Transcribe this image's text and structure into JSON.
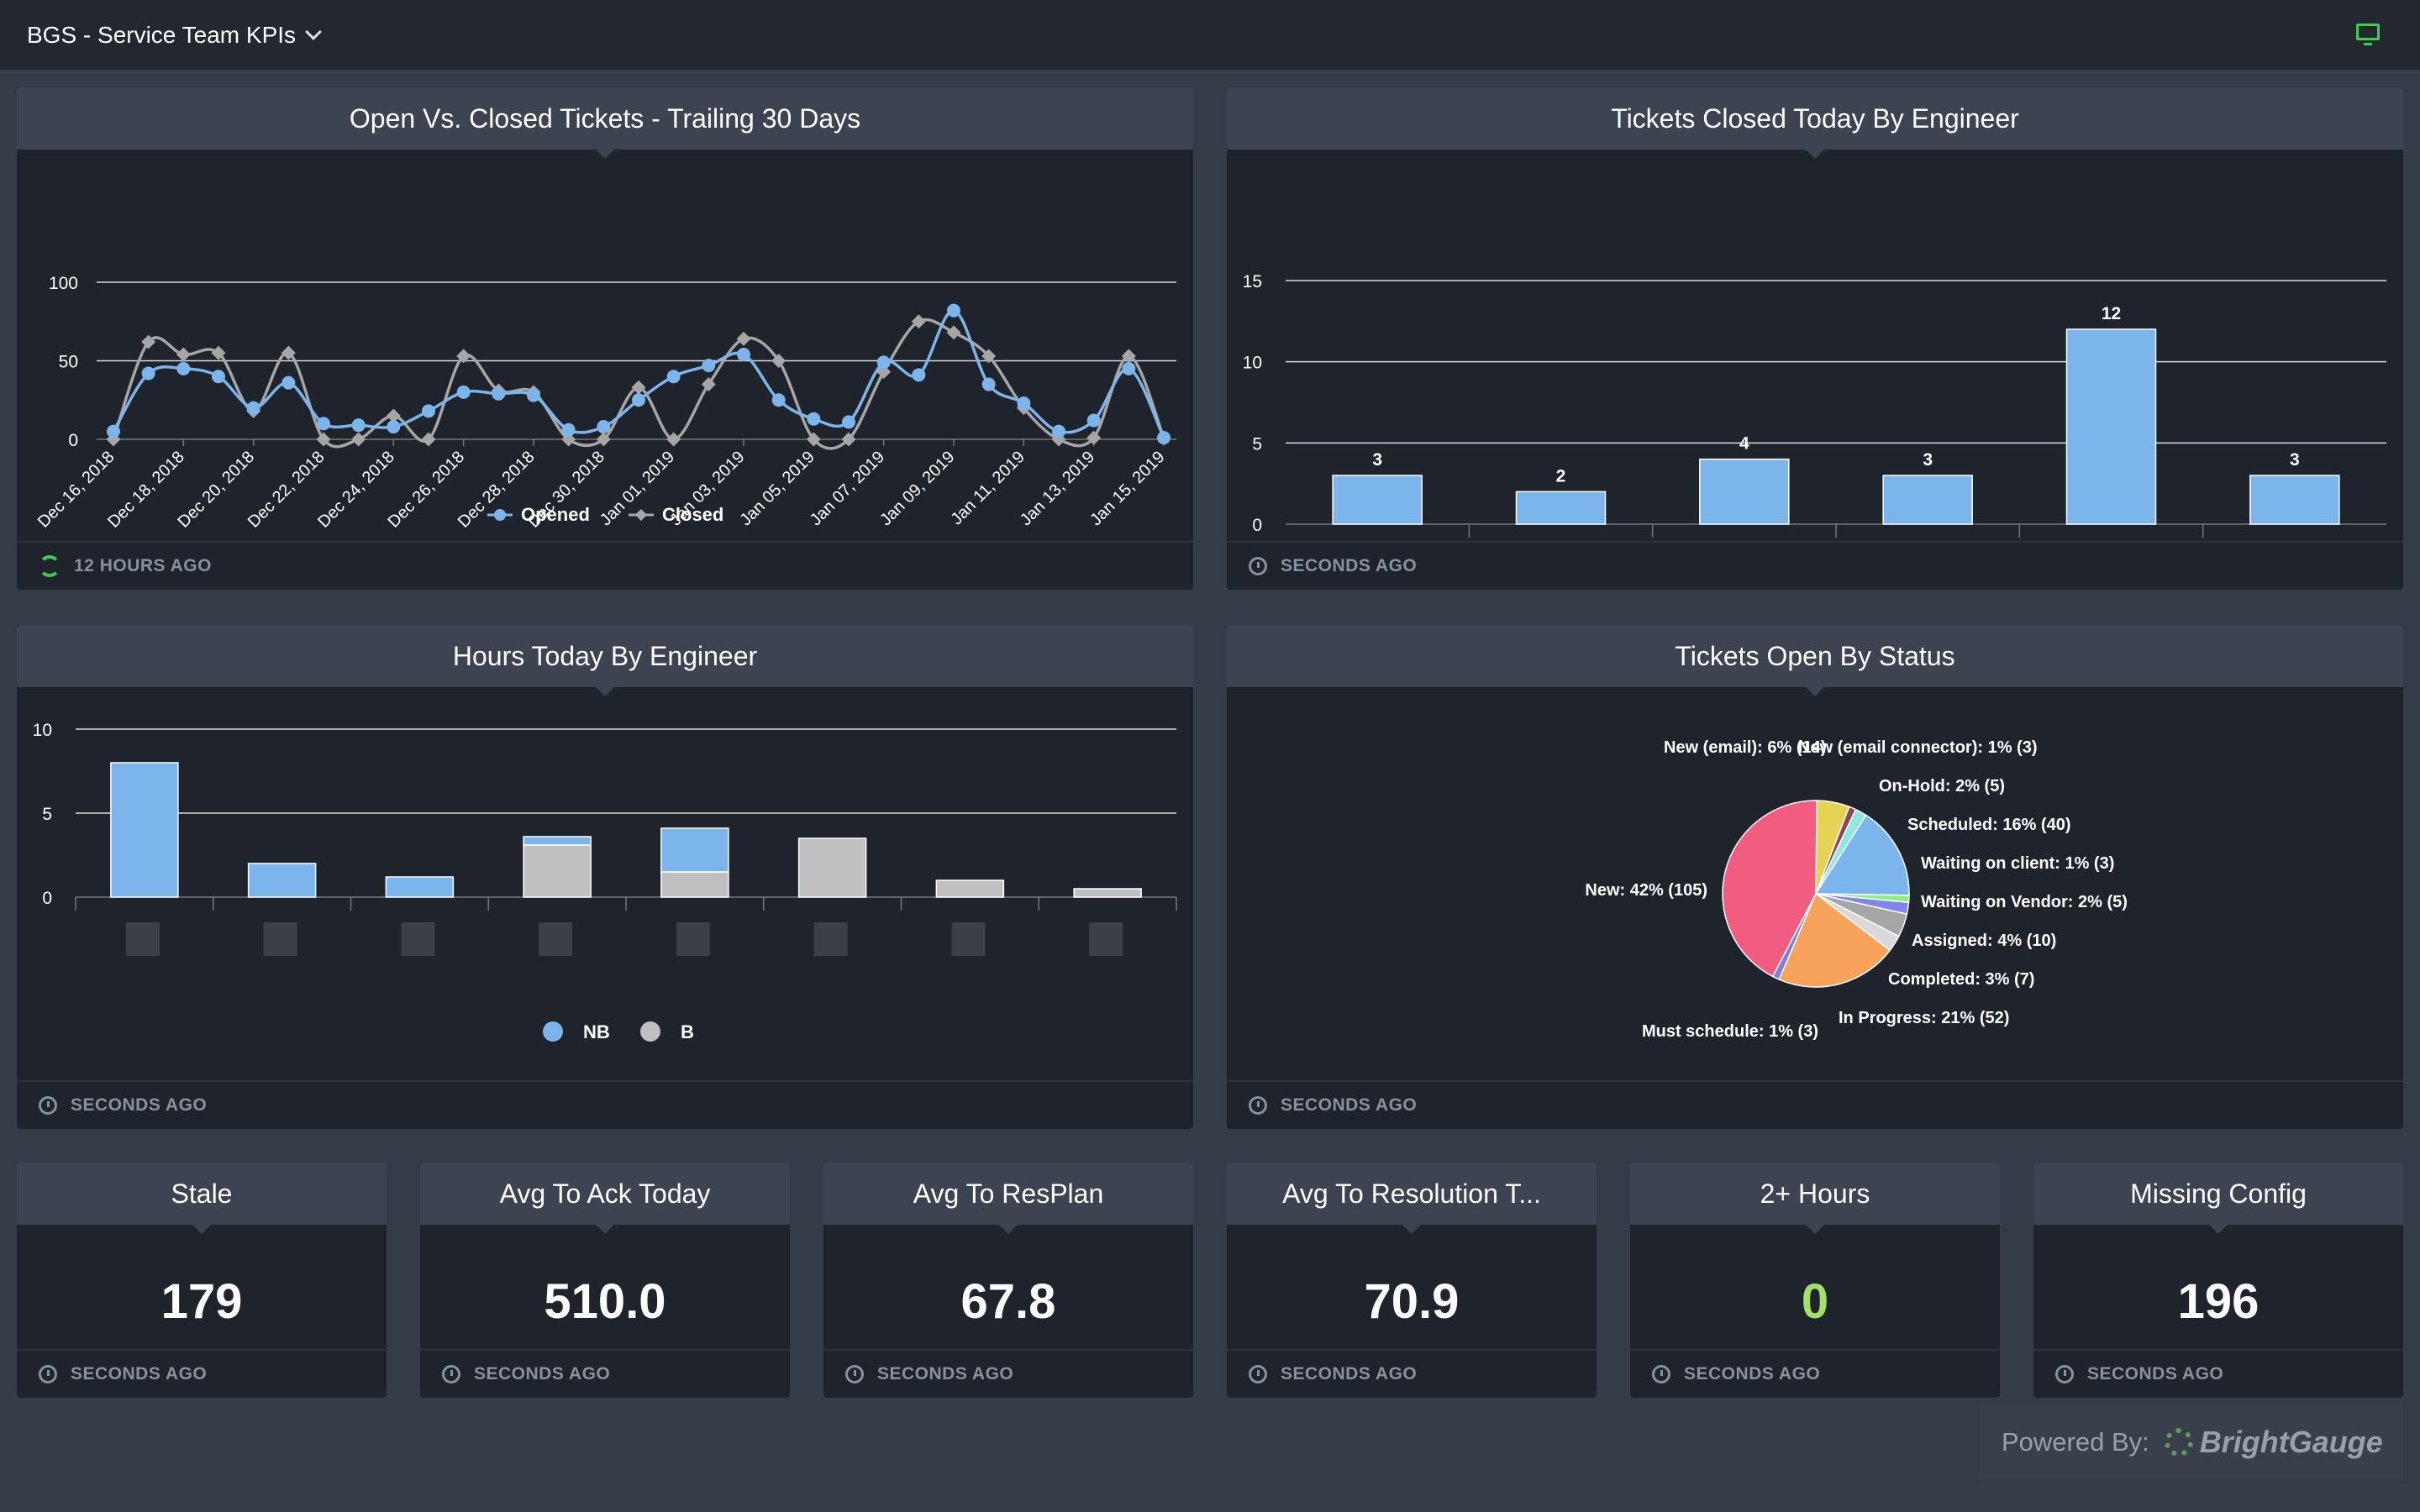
{
  "header": {
    "title": "BGS - Service Team KPIs"
  },
  "panels": {
    "open_closed": {
      "title": "Open Vs. Closed Tickets - Trailing 30 Days",
      "footer": "12 HOURS AGO"
    },
    "closed_by_engineer": {
      "title": "Tickets Closed Today By Engineer",
      "footer": "SECONDS AGO"
    },
    "hours_by_engineer": {
      "title": "Hours Today By Engineer",
      "footer": "SECONDS AGO"
    },
    "open_by_status": {
      "title": "Tickets Open By Status",
      "footer": "SECONDS AGO"
    }
  },
  "kpis": [
    {
      "title": "Stale",
      "value": "179",
      "footer": "SECONDS AGO",
      "color": "#ffffff"
    },
    {
      "title": "Avg To Ack Today",
      "value": "510.0",
      "footer": "SECONDS AGO",
      "color": "#ffffff"
    },
    {
      "title": "Avg To ResPlan",
      "value": "67.8",
      "footer": "SECONDS AGO",
      "color": "#ffffff"
    },
    {
      "title": "Avg To Resolution T...",
      "value": "70.9",
      "footer": "SECONDS AGO",
      "color": "#ffffff"
    },
    {
      "title": "2+ Hours",
      "value": "0",
      "footer": "SECONDS AGO",
      "color": "#a3e06b"
    },
    {
      "title": "Missing Config",
      "value": "196",
      "footer": "SECONDS AGO",
      "color": "#ffffff"
    }
  ],
  "powered": {
    "label": "Powered By:",
    "brand": "BrightGauge"
  },
  "chart_data": [
    {
      "type": "line",
      "title": "Open Vs. Closed Tickets - Trailing 30 Days",
      "x": [
        "Dec 16, 2018",
        "Dec 17, 2018",
        "Dec 18, 2018",
        "Dec 19, 2018",
        "Dec 20, 2018",
        "Dec 21, 2018",
        "Dec 22, 2018",
        "Dec 23, 2018",
        "Dec 24, 2018",
        "Dec 25, 2018",
        "Dec 26, 2018",
        "Dec 27, 2018",
        "Dec 28, 2018",
        "Dec 29, 2018",
        "Dec 30, 2018",
        "Dec 31, 2018",
        "Jan 01, 2019",
        "Jan 02, 2019",
        "Jan 03, 2019",
        "Jan 04, 2019",
        "Jan 05, 2019",
        "Jan 06, 2019",
        "Jan 07, 2019",
        "Jan 08, 2019",
        "Jan 09, 2019",
        "Jan 10, 2019",
        "Jan 11, 2019",
        "Jan 12, 2019",
        "Jan 13, 2019",
        "Jan 14, 2019",
        "Jan 15, 2019"
      ],
      "xticks": [
        "Dec 16, 2018",
        "Dec 18, 2018",
        "Dec 20, 2018",
        "Dec 22, 2018",
        "Dec 24, 2018",
        "Dec 26, 2018",
        "Dec 28, 2018",
        "Dec 30, 2018",
        "Jan 01, 2019",
        "Jan 03, 2019",
        "Jan 05, 2019",
        "Jan 07, 2019",
        "Jan 09, 2019",
        "Jan 11, 2019",
        "Jan 13, 2019",
        "Jan 15, 2019"
      ],
      "ylim": [
        0,
        100
      ],
      "yticks": [
        0,
        50,
        100
      ],
      "series": [
        {
          "name": "Opened",
          "color": "#7cb5ec",
          "values": [
            5,
            42,
            45,
            40,
            20,
            36,
            10,
            9,
            8,
            18,
            30,
            29,
            28,
            6,
            8,
            25,
            40,
            47,
            54,
            25,
            13,
            11,
            49,
            41,
            82,
            35,
            23,
            5,
            12,
            45,
            1
          ]
        },
        {
          "name": "Closed",
          "color": "#a6a6a6",
          "values": [
            0,
            62,
            54,
            55,
            18,
            55,
            0,
            0,
            15,
            0,
            53,
            31,
            30,
            0,
            0,
            33,
            0,
            35,
            64,
            50,
            0,
            0,
            43,
            75,
            68,
            53,
            20,
            0,
            1,
            53,
            1
          ]
        }
      ],
      "legend": "bottom"
    },
    {
      "type": "bar",
      "title": "Tickets Closed Today By Engineer",
      "categories": [
        "",
        "",
        "",
        "",
        "",
        ""
      ],
      "values": [
        3,
        2,
        4,
        3,
        12,
        3
      ],
      "ylim": [
        0,
        15
      ],
      "yticks": [
        0,
        5,
        10,
        15
      ],
      "color": "#7cb5ec"
    },
    {
      "type": "bar",
      "title": "Hours Today By Engineer",
      "stacked": true,
      "categories": [
        "",
        "",
        "",
        "",
        "",
        "",
        "",
        ""
      ],
      "ylim": [
        0,
        10
      ],
      "yticks": [
        0,
        5,
        10
      ],
      "series": [
        {
          "name": "NB",
          "color": "#7cb5ec",
          "values": [
            8.0,
            2.0,
            1.2,
            0.5,
            2.6,
            0,
            0,
            0
          ]
        },
        {
          "name": "B",
          "color": "#c0c0c2",
          "values": [
            0,
            0,
            0,
            3.1,
            1.5,
            3.5,
            1.0,
            0.5
          ]
        }
      ],
      "legend": "bottom"
    },
    {
      "type": "pie",
      "title": "Tickets Open By Status",
      "slices": [
        {
          "label": "New (email): 6% (14)",
          "value": 14,
          "color": "#e4d354"
        },
        {
          "label": "New (email connector): 1% (3)",
          "value": 3,
          "color": "#8d4653"
        },
        {
          "label": "On-Hold: 2% (5)",
          "value": 5,
          "color": "#91e8e1"
        },
        {
          "label": "Scheduled: 16% (40)",
          "value": 40,
          "color": "#7cb5ec"
        },
        {
          "label": "Waiting on client: 1% (3)",
          "value": 3,
          "color": "#90ed7d"
        },
        {
          "label": "Waiting on Vendor: 2% (5)",
          "value": 5,
          "color": "#8085e9"
        },
        {
          "label": "Assigned: 4% (10)",
          "value": 10,
          "color": "#a6a6a6"
        },
        {
          "label": "Completed: 3% (7)",
          "value": 7,
          "color": "#d9d9d9"
        },
        {
          "label": "In Progress: 21% (52)",
          "value": 52,
          "color": "#f7a35c"
        },
        {
          "label": "Must schedule: 1% (3)",
          "value": 3,
          "color": "#7b7fd9"
        },
        {
          "label": "New: 42% (105)",
          "value": 105,
          "color": "#f15c80"
        }
      ]
    }
  ]
}
